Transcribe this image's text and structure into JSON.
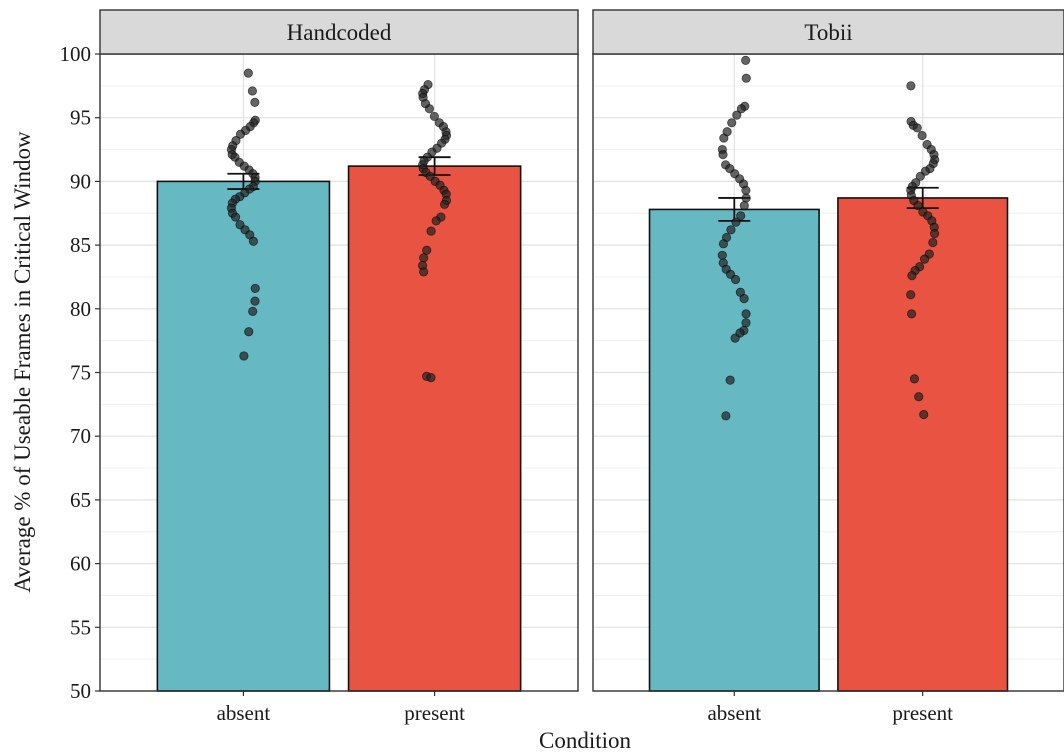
{
  "chart_data": {
    "type": "bar",
    "xlabel": "Condition",
    "ylabel": "Average % of Useable Frames in Critical Window",
    "ylim": [
      50,
      100
    ],
    "yticks": [
      50,
      55,
      60,
      65,
      70,
      75,
      80,
      85,
      90,
      95,
      100
    ],
    "categories": [
      "absent",
      "present"
    ],
    "grid": true,
    "colors": {
      "absent": "#66b8c2",
      "present": "#e85441",
      "strip": "#d9d9d9",
      "border": "#333333",
      "point": "#222222"
    },
    "panels": [
      {
        "name": "Handcoded",
        "bars": [
          {
            "category": "absent",
            "value": 90.0,
            "se": 0.6,
            "points": [
              98.5,
              97.1,
              96.2,
              94.8,
              94.6,
              94.3,
              94.0,
              93.7,
              93.2,
              92.8,
              92.5,
              92.1,
              91.9,
              91.5,
              91.2,
              90.9,
              90.6,
              90.3,
              90.0,
              89.6,
              89.4,
              89.1,
              88.8,
              88.6,
              88.3,
              87.9,
              87.5,
              87.2,
              86.6,
              86.2,
              85.8,
              85.3,
              81.6,
              80.6,
              79.8,
              78.2,
              76.3
            ]
          },
          {
            "category": "present",
            "value": 91.2,
            "se": 0.7,
            "points": [
              97.6,
              97.2,
              96.9,
              96.6,
              96.1,
              95.7,
              95.1,
              94.6,
              94.3,
              93.9,
              93.6,
              93.3,
              93.0,
              92.6,
              92.3,
              91.9,
              91.6,
              91.3,
              91.0,
              90.7,
              90.4,
              90.0,
              89.7,
              89.3,
              89.0,
              88.5,
              88.2,
              87.2,
              86.9,
              86.1,
              84.6,
              84.0,
              83.4,
              82.9,
              74.7,
              74.6
            ]
          }
        ]
      },
      {
        "name": "Tobii",
        "bars": [
          {
            "category": "absent",
            "value": 87.8,
            "se": 0.9,
            "points": [
              99.5,
              98.1,
              95.9,
              95.7,
              95.2,
              94.6,
              93.9,
              93.4,
              92.5,
              92.1,
              91.3,
              91.0,
              90.6,
              90.2,
              89.8,
              89.3,
              88.7,
              88.1,
              87.3,
              86.8,
              86.2,
              85.6,
              85.1,
              84.2,
              83.6,
              83.1,
              82.7,
              82.3,
              81.3,
              80.8,
              79.6,
              78.9,
              78.3,
              78.1,
              77.7,
              74.4,
              71.6
            ]
          },
          {
            "category": "present",
            "value": 88.7,
            "se": 0.8,
            "points": [
              97.5,
              94.7,
              94.4,
              94.2,
              93.6,
              92.9,
              92.5,
              92.1,
              91.7,
              91.4,
              91.0,
              90.8,
              90.4,
              89.9,
              89.6,
              89.3,
              88.9,
              88.5,
              88.1,
              87.6,
              87.3,
              86.9,
              86.4,
              85.9,
              85.2,
              84.3,
              83.9,
              83.3,
              83.0,
              82.6,
              81.1,
              79.6,
              74.5,
              73.1,
              71.7
            ]
          }
        ]
      }
    ]
  }
}
